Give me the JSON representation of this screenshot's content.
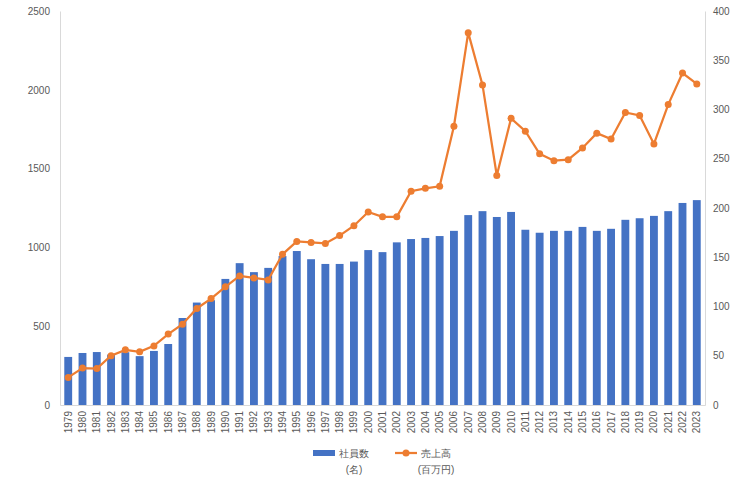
{
  "chart_data": {
    "type": "bar",
    "categories": [
      "1979",
      "1980",
      "1981",
      "1982",
      "1983",
      "1984",
      "1985",
      "1986",
      "1987",
      "1988",
      "1989",
      "1990",
      "1991",
      "1992",
      "1993",
      "1994",
      "1995",
      "1996",
      "1997",
      "1998",
      "1999",
      "2000",
      "2001",
      "2002",
      "2003",
      "2004",
      "2005",
      "2006",
      "2007",
      "2008",
      "2009",
      "2010",
      "2011",
      "2012",
      "2013",
      "2014",
      "2015",
      "2016",
      "2017",
      "2018",
      "2019",
      "2020",
      "2021",
      "2022",
      "2023"
    ],
    "series": [
      {
        "name": "社員数",
        "type": "bar",
        "color": "#4472c4",
        "values": [
          305,
          330,
          336,
          320,
          335,
          310,
          343,
          387,
          552,
          650,
          665,
          800,
          900,
          843,
          870,
          945,
          977,
          925,
          895,
          895,
          910,
          983,
          970,
          1032,
          1053,
          1060,
          1072,
          1105,
          1205,
          1230,
          1193,
          1225,
          1112,
          1093,
          1105,
          1105,
          1130,
          1105,
          1118,
          1175,
          1185,
          1200,
          1230,
          1282,
          1300
        ]
      },
      {
        "name": "売上高",
        "type": "line",
        "color": "#ed7d31",
        "marker": "circle",
        "axis": "y2",
        "values": [
          28,
          37.5,
          37,
          50,
          56,
          54,
          60,
          72,
          82,
          98,
          108,
          120,
          131,
          129,
          127,
          153,
          166,
          165,
          164,
          172,
          182,
          196,
          191,
          191,
          217,
          220,
          222,
          283,
          378,
          325,
          233,
          291,
          278,
          255,
          248,
          249,
          261,
          276,
          270,
          297,
          294,
          265,
          305,
          337,
          326
        ]
      }
    ],
    "ylim": [
      0,
      2500
    ],
    "yticks": [
      0,
      500,
      1000,
      1500,
      2000,
      2500
    ],
    "y2lim": [
      0,
      400
    ],
    "y2ticks": [
      0,
      50,
      100,
      150,
      200,
      250,
      300,
      350,
      400
    ],
    "ylabel": "(名)",
    "y2label": "(百万円)",
    "legend": "bottom",
    "grid": false
  }
}
